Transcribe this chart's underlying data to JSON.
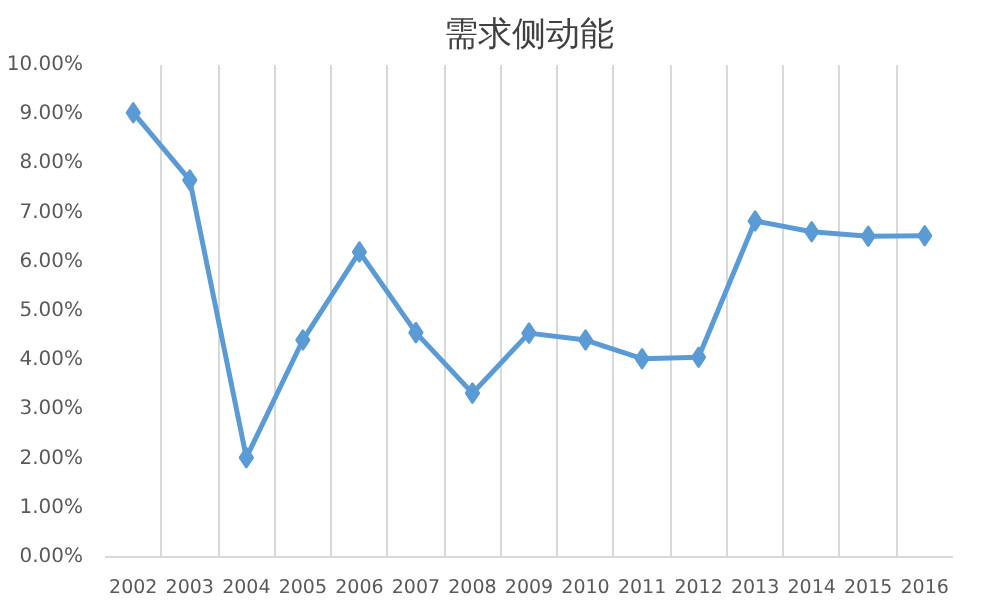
{
  "chart_data": {
    "type": "line",
    "title": "需求侧动能",
    "categories": [
      "2002",
      "2003",
      "2004",
      "2005",
      "2006",
      "2007",
      "2008",
      "2009",
      "2010",
      "2011",
      "2012",
      "2013",
      "2014",
      "2015",
      "2016"
    ],
    "series": [
      {
        "color": "#5b9bd5",
        "values": [
          9.03,
          7.66,
          2.02,
          4.41,
          6.2,
          4.56,
          3.33,
          4.55,
          4.41,
          4.03,
          4.06,
          6.83,
          6.61,
          6.52,
          6.53
        ]
      }
    ],
    "ylim": [
      0,
      10
    ],
    "yticks": [
      {
        "value": 0,
        "label": "0.00%"
      },
      {
        "value": 1,
        "label": "1.00%"
      },
      {
        "value": 2,
        "label": "2.00%"
      },
      {
        "value": 3,
        "label": "3.00%"
      },
      {
        "value": 4,
        "label": "4.00%"
      },
      {
        "value": 5,
        "label": "5.00%"
      },
      {
        "value": 6,
        "label": "6.00%"
      },
      {
        "value": 7,
        "label": "7.00%"
      },
      {
        "value": 8,
        "label": "8.00%"
      },
      {
        "value": 9,
        "label": "9.00%"
      },
      {
        "value": 10,
        "label": "10.00%"
      }
    ],
    "grid": "x",
    "marker": "diamond",
    "line_style": "solid"
  }
}
